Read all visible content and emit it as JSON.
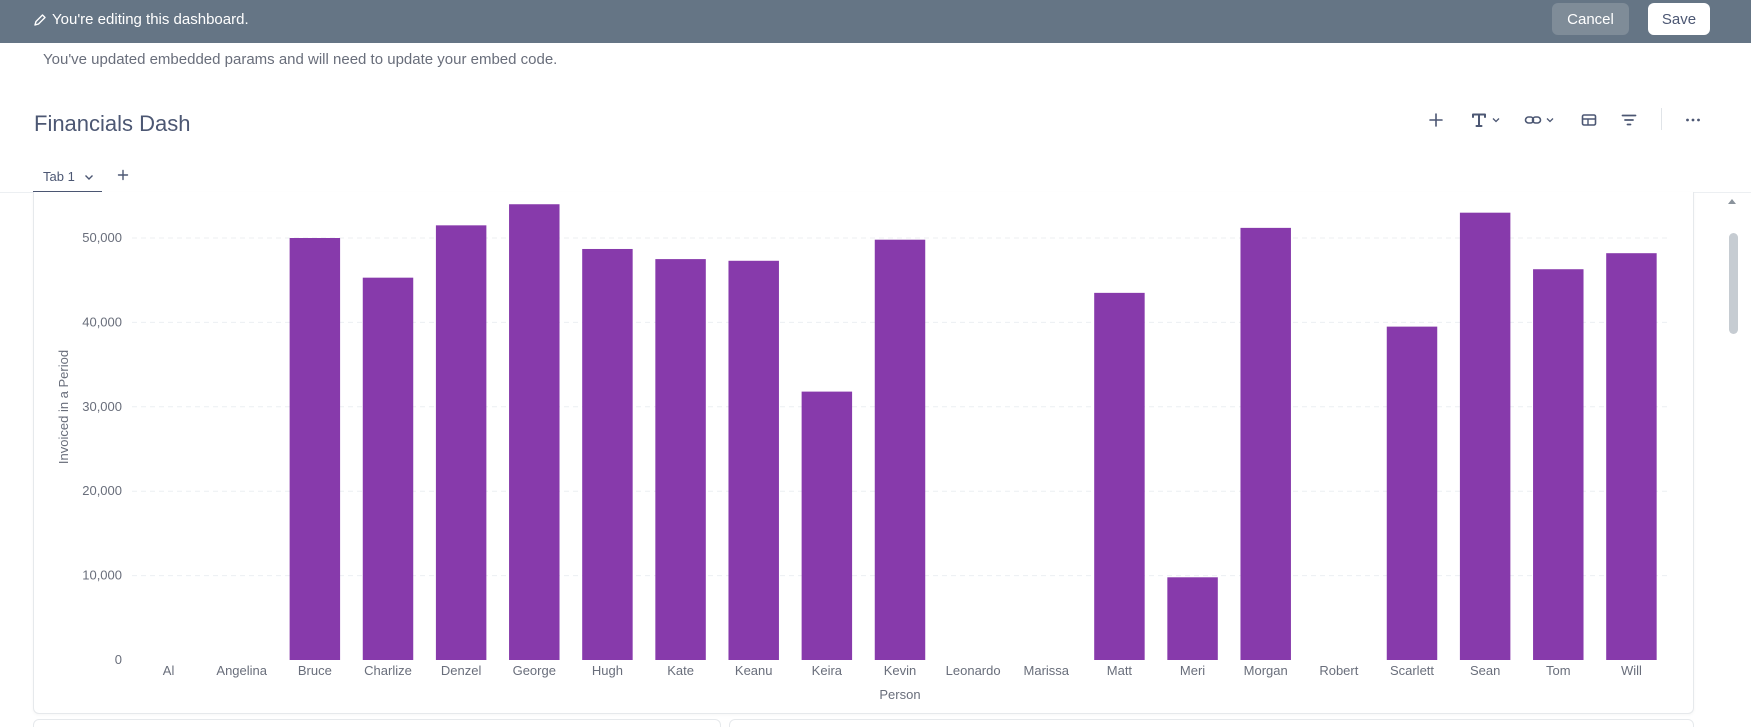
{
  "edit_bar": {
    "message": "You're editing this dashboard.",
    "cancel_label": "Cancel",
    "save_label": "Save"
  },
  "notice": "You've updated embedded params and will need to update your embed code.",
  "dashboard": {
    "title": "Financials Dash"
  },
  "toolbar": {
    "icons": [
      "add-card-icon",
      "text-icon",
      "link-icon",
      "section-icon",
      "filter-icon",
      "more-icon"
    ]
  },
  "tabs": [
    {
      "label": "Tab 1",
      "active": true
    }
  ],
  "add_tab_label": "+",
  "colors": {
    "bar": "#873aab",
    "edit_bar": "#657585",
    "cancel_button": "#7f8c98",
    "gridline": "#eceff2",
    "text": "#4c5773"
  },
  "chart_data": {
    "type": "bar",
    "xlabel": "Person",
    "ylabel": "Invoiced in a Period",
    "ylim": [
      0,
      55000
    ],
    "yticks": [
      0,
      10000,
      20000,
      30000,
      40000,
      50000
    ],
    "ytick_labels": [
      "0",
      "10,000",
      "20,000",
      "30,000",
      "40,000",
      "50,000"
    ],
    "grid": true,
    "categories": [
      "Al",
      "Angelina",
      "Bruce",
      "Charlize",
      "Denzel",
      "George",
      "Hugh",
      "Kate",
      "Keanu",
      "Keira",
      "Kevin",
      "Leonardo",
      "Marissa",
      "Matt",
      "Meri",
      "Morgan",
      "Robert",
      "Scarlett",
      "Sean",
      "Tom",
      "Will"
    ],
    "values": [
      0,
      0,
      50000,
      45300,
      51500,
      54000,
      48700,
      47500,
      47300,
      31800,
      49800,
      0,
      0,
      43500,
      9800,
      51200,
      0,
      39500,
      53000,
      46300,
      48200
    ]
  }
}
